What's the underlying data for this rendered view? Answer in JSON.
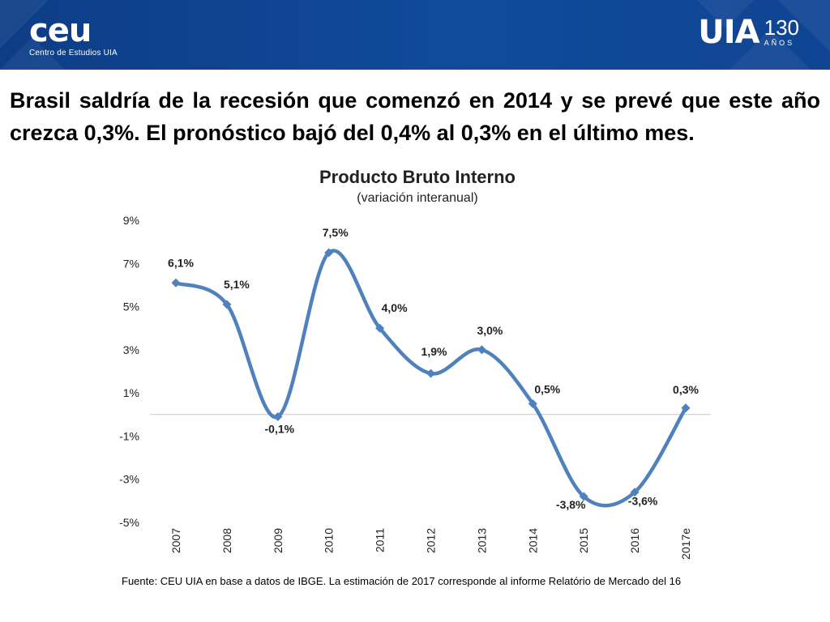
{
  "header": {
    "left_logo": {
      "word": "ceu",
      "subtitle": "Centro de Estudios UIA"
    },
    "right_logo": {
      "word": "UIA",
      "anniversary_number": "130",
      "anniversary_label": "AÑOS"
    }
  },
  "slide_title": "Brasil saldría de la recesión que comenzó en 2014 y se prevé que este año crezca 0,3%. El pronóstico bajó del 0,4% al 0,3% en el último mes.",
  "footnote": "Fuente: CEU UIA en base a datos de IBGE. La estimación de 2017 corresponde al informe Relatório de Mercado del 16",
  "colors": {
    "header": "#114a9c",
    "series": "#4f81bd",
    "title_text": "#000000"
  },
  "chart_data": {
    "type": "line",
    "title": "Producto Bruto Interno",
    "subtitle": "(variación interanual)",
    "xlabel": "",
    "ylabel": "",
    "categories": [
      "2007",
      "2008",
      "2009",
      "2010",
      "2011",
      "2012",
      "2013",
      "2014",
      "2015",
      "2016",
      "2017e"
    ],
    "series": [
      {
        "name": "",
        "values": [
          6.1,
          5.1,
          -0.1,
          7.5,
          4.0,
          1.9,
          3.0,
          0.5,
          -3.8,
          -3.6,
          0.3
        ],
        "labels": [
          "6,1%",
          "5,1%",
          "-0,1%",
          "7,5%",
          "4,0%",
          "1,9%",
          "3,0%",
          "0,5%",
          "-3,8%",
          "-3,6%",
          "0,3%"
        ]
      }
    ],
    "ylim": [
      -5,
      9
    ],
    "yticks": [
      9,
      7,
      5,
      3,
      1,
      -1,
      -3,
      -5
    ],
    "ytick_labels": [
      "9%",
      "7%",
      "5%",
      "3%",
      "1%",
      "-1%",
      "-3%",
      "-5%"
    ],
    "smooth": true,
    "marker": "diamond",
    "grid": false,
    "legend": false
  }
}
